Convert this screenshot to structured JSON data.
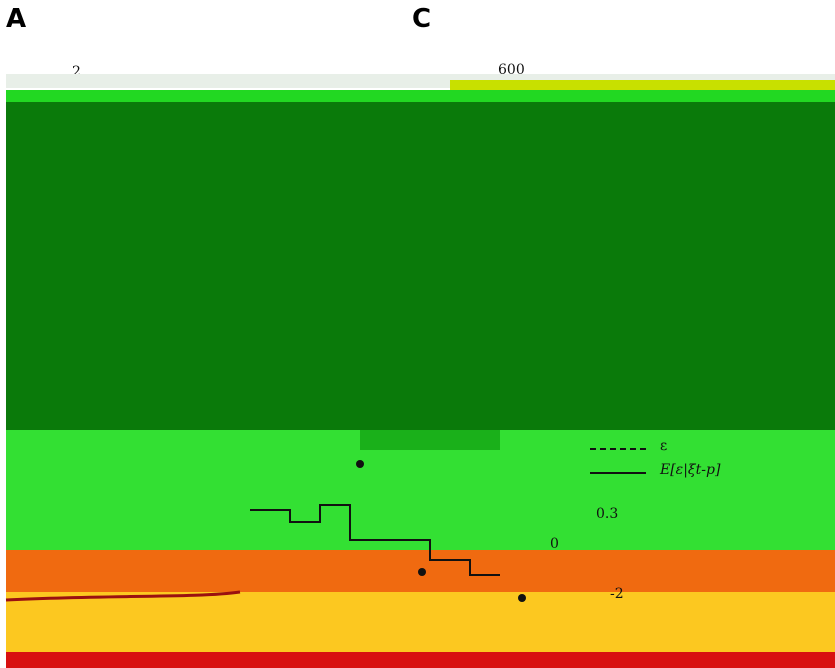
{
  "panels": [
    {
      "label": "A"
    },
    {
      "label": "C"
    }
  ],
  "axis_labels": [
    "2",
    "600",
    "0.3",
    "0",
    "-2"
  ],
  "legend": [
    "ε",
    "E[ε|ξt-p]"
  ]
}
